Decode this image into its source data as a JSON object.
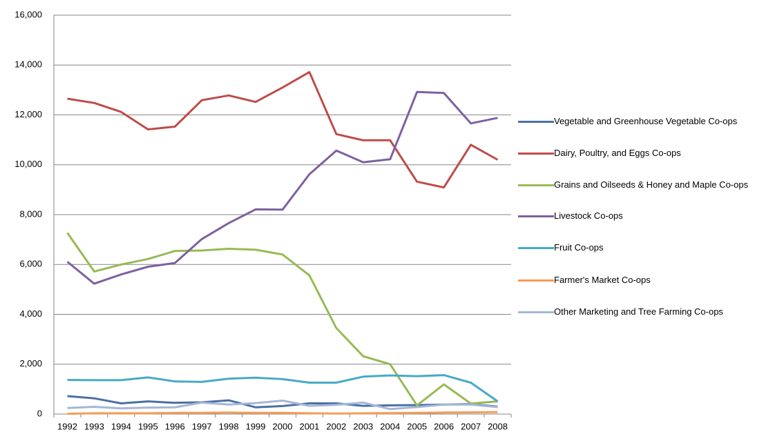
{
  "chart_data": {
    "type": "line",
    "categories": [
      "1992",
      "1993",
      "1994",
      "1995",
      "1996",
      "1997",
      "1998",
      "1999",
      "2000",
      "2001",
      "2002",
      "2003",
      "2004",
      "2005",
      "2006",
      "2007",
      "2008"
    ],
    "ylim": [
      0,
      16000
    ],
    "yticks": [
      0,
      {
        "value": 2000,
        "label": "2,000"
      },
      {
        "value": 4000,
        "label": "4,000"
      },
      {
        "value": 6000,
        "label": "6,000"
      },
      {
        "value": 8000,
        "label": "8,000"
      },
      {
        "value": 10000,
        "label": "10,000"
      },
      {
        "value": 12000,
        "label": "12,000"
      },
      {
        "value": 14000,
        "label": "14,000"
      },
      {
        "value": 16000,
        "label": "16,000"
      }
    ],
    "grid": true,
    "legend": "right",
    "series": [
      {
        "name": "Vegetable and Greenhouse Vegetable Co-ops",
        "color": "#4a6fa5",
        "values": [
          720,
          630,
          430,
          510,
          450,
          470,
          550,
          270,
          320,
          430,
          430,
          330,
          350,
          360,
          380,
          400,
          300
        ]
      },
      {
        "name": "Dairy, Poultry, and Eggs Co-ops",
        "color": "#be4b48",
        "values": [
          12650,
          12480,
          12120,
          11420,
          11530,
          12590,
          12780,
          12520,
          13100,
          13720,
          11230,
          10980,
          10980,
          9320,
          9090,
          10800,
          10200
        ]
      },
      {
        "name": "Grains and Oilseeds & Honey and Maple Co-ops",
        "color": "#98b954",
        "values": [
          7270,
          5720,
          6000,
          6220,
          6540,
          6560,
          6630,
          6590,
          6400,
          5560,
          3450,
          2320,
          2000,
          350,
          1190,
          420,
          510
        ]
      },
      {
        "name": "Livestock Co-ops",
        "color": "#7d60a0",
        "values": [
          6110,
          5230,
          5600,
          5910,
          6060,
          7020,
          7660,
          8210,
          8200,
          9620,
          10570,
          10100,
          10220,
          12920,
          12880,
          11660,
          11880
        ]
      },
      {
        "name": "Fruit Co-ops",
        "color": "#46aac5",
        "values": [
          1370,
          1360,
          1360,
          1470,
          1310,
          1290,
          1420,
          1460,
          1400,
          1260,
          1260,
          1500,
          1550,
          1520,
          1560,
          1260,
          510
        ]
      },
      {
        "name": "Farmer's Market Co-ops",
        "color": "#f59d56",
        "values": [
          10,
          30,
          30,
          30,
          50,
          50,
          60,
          50,
          50,
          30,
          20,
          30,
          40,
          50,
          60,
          70,
          80
        ]
      },
      {
        "name": "Other Marketing and Tree Farming Co-ops",
        "color": "#a5b6d7",
        "values": [
          240,
          290,
          230,
          260,
          270,
          460,
          380,
          440,
          540,
          330,
          370,
          460,
          200,
          280,
          380,
          380,
          280
        ]
      }
    ]
  }
}
